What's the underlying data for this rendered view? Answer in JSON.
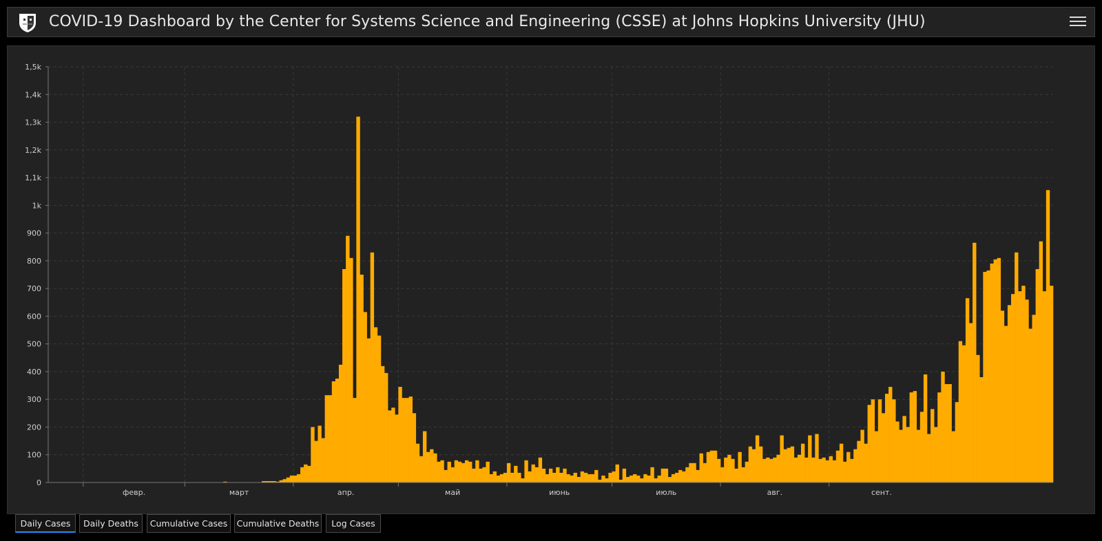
{
  "header": {
    "title": "COVID-19 Dashboard by the Center for Systems Science and Engineering (CSSE) at Johns Hopkins University (JHU)",
    "logo_icon": "jhu-shield-icon",
    "menu_icon": "hamburger-menu-icon"
  },
  "tabs": [
    {
      "label": "Daily Cases",
      "active": true
    },
    {
      "label": "Daily Deaths",
      "active": false
    },
    {
      "label": "Cumulative Cases",
      "active": false
    },
    {
      "label": "Cumulative Deaths",
      "active": false
    },
    {
      "label": "Log Cases",
      "active": false
    }
  ],
  "chart_data": {
    "type": "bar",
    "title": "",
    "xlabel": "",
    "ylabel": "",
    "bar_color": "#ffab00",
    "grid": true,
    "ylim": [
      0,
      1500
    ],
    "y_ticks": [
      "0",
      "100",
      "200",
      "300",
      "400",
      "500",
      "600",
      "700",
      "800",
      "900",
      "1k",
      "1,1k",
      "1,2k",
      "1,3k",
      "1,4k",
      "1,5k"
    ],
    "x_ticks": [
      "февр.",
      "март",
      "апр.",
      "май",
      "июнь",
      "июль",
      "авг.",
      "сент."
    ],
    "x_range": [
      "2020-01-22",
      "2020-09-20"
    ],
    "series": [
      {
        "values": [
          0,
          0,
          0,
          0,
          0,
          0,
          0,
          0,
          0,
          0,
          0,
          0,
          0,
          0,
          0,
          0,
          0,
          0,
          0,
          0,
          0,
          0,
          0,
          0,
          0,
          0,
          0,
          0,
          0,
          0,
          0,
          0,
          0,
          0,
          0,
          0,
          0,
          0,
          0,
          0,
          0,
          0,
          0,
          0,
          0,
          0,
          0,
          0,
          0,
          0,
          3,
          0,
          0,
          0,
          0,
          0,
          0,
          0,
          0,
          0,
          0,
          5,
          5,
          5,
          5,
          3,
          8,
          12,
          18,
          25,
          25,
          30,
          55,
          65,
          60,
          200,
          150,
          205,
          160,
          315,
          315,
          365,
          375,
          425,
          770,
          890,
          810,
          305,
          1320,
          750,
          615,
          520,
          830,
          560,
          530,
          420,
          395,
          260,
          270,
          245,
          345,
          305,
          305,
          310,
          250,
          140,
          95,
          185,
          110,
          120,
          105,
          75,
          80,
          45,
          75,
          55,
          80,
          75,
          70,
          80,
          75,
          50,
          80,
          50,
          55,
          75,
          30,
          40,
          25,
          30,
          35,
          70,
          35,
          60,
          35,
          15,
          80,
          40,
          65,
          55,
          90,
          50,
          30,
          50,
          35,
          55,
          35,
          50,
          30,
          25,
          35,
          20,
          40,
          35,
          30,
          30,
          45,
          10,
          25,
          15,
          35,
          40,
          65,
          10,
          50,
          20,
          25,
          30,
          25,
          15,
          30,
          25,
          55,
          15,
          25,
          50,
          50,
          20,
          30,
          35,
          45,
          40,
          55,
          70,
          70,
          45,
          105,
          70,
          110,
          115,
          115,
          85,
          55,
          90,
          100,
          85,
          50,
          110,
          55,
          75,
          130,
          120,
          170,
          130,
          85,
          90,
          85,
          90,
          100,
          170,
          120,
          125,
          130,
          90,
          100,
          140,
          90,
          170,
          90,
          175,
          85,
          90,
          80,
          95,
          80,
          115,
          140,
          75,
          110,
          85,
          120,
          150,
          190,
          140,
          280,
          300,
          185,
          300,
          250,
          320,
          345,
          300,
          220,
          190,
          240,
          200,
          325,
          330,
          190,
          255,
          390,
          175,
          265,
          200,
          325,
          400,
          355,
          355,
          185,
          290,
          510,
          495,
          665,
          575,
          865,
          460,
          380,
          760,
          765,
          790,
          805,
          810,
          620,
          565,
          640,
          680,
          830,
          690,
          710,
          660,
          555,
          605,
          770,
          870,
          690,
          1055,
          710
        ]
      }
    ]
  }
}
